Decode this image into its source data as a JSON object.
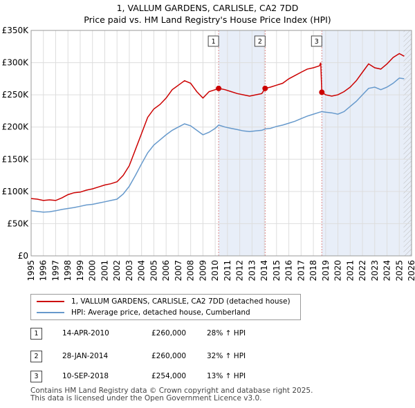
{
  "title_line1": "1, VALLUM GARDENS, CARLISLE, CA2 7DD",
  "title_line2": "Price paid vs. HM Land Registry's House Price Index (HPI)",
  "colors": {
    "property": "#cc0000",
    "hpi": "#6699cc",
    "shade": "#e8eef8",
    "marker_line": "#dd8888"
  },
  "chart_data": {
    "type": "line",
    "ylim": [
      0,
      350000
    ],
    "xlim": [
      1995,
      2026
    ],
    "y_ticks": [
      {
        "value": 0,
        "label": "£0"
      },
      {
        "value": 50000,
        "label": "£50K"
      },
      {
        "value": 100000,
        "label": "£100K"
      },
      {
        "value": 150000,
        "label": "£150K"
      },
      {
        "value": 200000,
        "label": "£200K"
      },
      {
        "value": 250000,
        "label": "£250K"
      },
      {
        "value": 300000,
        "label": "£300K"
      },
      {
        "value": 350000,
        "label": "£350K"
      }
    ],
    "x_ticks": [
      "1995",
      "1996",
      "1997",
      "1998",
      "1999",
      "2000",
      "2001",
      "2002",
      "2003",
      "2004",
      "2005",
      "2006",
      "2007",
      "2008",
      "2009",
      "2010",
      "2011",
      "2012",
      "2013",
      "2014",
      "2015",
      "2016",
      "2017",
      "2018",
      "2019",
      "2020",
      "2021",
      "2022",
      "2023",
      "2024",
      "2025",
      "2026"
    ],
    "shaded_spans": [
      [
        2010.28,
        2014.07
      ],
      [
        2018.69,
        2026
      ]
    ],
    "hatched_from": 2025.35,
    "markers": [
      {
        "label": "1",
        "x": 2010.28,
        "y": 260000
      },
      {
        "label": "2",
        "x": 2014.07,
        "y": 260000
      },
      {
        "label": "3",
        "x": 2018.69,
        "y": 254000
      }
    ],
    "series": [
      {
        "name": "1, VALLUM GARDENS, CARLISLE, CA2 7DD (detached house)",
        "color": "#cc0000",
        "points": [
          [
            1995.0,
            89000
          ],
          [
            1995.5,
            88000
          ],
          [
            1996.0,
            86000
          ],
          [
            1996.5,
            87000
          ],
          [
            1997.0,
            86000
          ],
          [
            1997.5,
            90000
          ],
          [
            1998.0,
            95000
          ],
          [
            1998.5,
            98000
          ],
          [
            1999.0,
            99000
          ],
          [
            1999.5,
            102000
          ],
          [
            2000.0,
            104000
          ],
          [
            2000.5,
            107000
          ],
          [
            2001.0,
            110000
          ],
          [
            2001.5,
            112000
          ],
          [
            2002.0,
            115000
          ],
          [
            2002.5,
            125000
          ],
          [
            2003.0,
            140000
          ],
          [
            2003.5,
            165000
          ],
          [
            2004.0,
            190000
          ],
          [
            2004.5,
            215000
          ],
          [
            2005.0,
            228000
          ],
          [
            2005.5,
            235000
          ],
          [
            2006.0,
            245000
          ],
          [
            2006.5,
            258000
          ],
          [
            2007.0,
            265000
          ],
          [
            2007.5,
            272000
          ],
          [
            2008.0,
            268000
          ],
          [
            2008.5,
            255000
          ],
          [
            2009.0,
            245000
          ],
          [
            2009.5,
            255000
          ],
          [
            2010.0,
            258000
          ],
          [
            2010.28,
            260000
          ],
          [
            2010.8,
            258000
          ],
          [
            2011.3,
            255000
          ],
          [
            2011.8,
            252000
          ],
          [
            2012.3,
            250000
          ],
          [
            2012.8,
            248000
          ],
          [
            2013.3,
            250000
          ],
          [
            2013.8,
            252000
          ],
          [
            2014.07,
            260000
          ],
          [
            2014.5,
            262000
          ],
          [
            2015.0,
            265000
          ],
          [
            2015.5,
            268000
          ],
          [
            2016.0,
            275000
          ],
          [
            2016.5,
            280000
          ],
          [
            2017.0,
            285000
          ],
          [
            2017.5,
            290000
          ],
          [
            2018.0,
            292000
          ],
          [
            2018.5,
            295000
          ],
          [
            2018.6,
            300000
          ],
          [
            2018.69,
            254000
          ],
          [
            2019.0,
            250000
          ],
          [
            2019.5,
            248000
          ],
          [
            2020.0,
            250000
          ],
          [
            2020.5,
            255000
          ],
          [
            2021.0,
            262000
          ],
          [
            2021.5,
            272000
          ],
          [
            2022.0,
            285000
          ],
          [
            2022.5,
            298000
          ],
          [
            2023.0,
            292000
          ],
          [
            2023.5,
            290000
          ],
          [
            2024.0,
            298000
          ],
          [
            2024.5,
            308000
          ],
          [
            2025.0,
            314000
          ],
          [
            2025.4,
            310000
          ]
        ]
      },
      {
        "name": "HPI: Average price, detached house, Cumberland",
        "color": "#6699cc",
        "points": [
          [
            1995.0,
            70000
          ],
          [
            1995.5,
            69000
          ],
          [
            1996.0,
            68000
          ],
          [
            1996.5,
            68500
          ],
          [
            1997.0,
            70000
          ],
          [
            1997.5,
            72000
          ],
          [
            1998.0,
            73500
          ],
          [
            1998.5,
            75000
          ],
          [
            1999.0,
            77000
          ],
          [
            1999.5,
            79000
          ],
          [
            2000.0,
            80000
          ],
          [
            2000.5,
            82000
          ],
          [
            2001.0,
            84000
          ],
          [
            2001.5,
            86000
          ],
          [
            2002.0,
            88000
          ],
          [
            2002.5,
            96000
          ],
          [
            2003.0,
            108000
          ],
          [
            2003.5,
            125000
          ],
          [
            2004.0,
            143000
          ],
          [
            2004.5,
            160000
          ],
          [
            2005.0,
            172000
          ],
          [
            2005.5,
            180000
          ],
          [
            2006.0,
            188000
          ],
          [
            2006.5,
            195000
          ],
          [
            2007.0,
            200000
          ],
          [
            2007.5,
            205000
          ],
          [
            2008.0,
            202000
          ],
          [
            2008.5,
            195000
          ],
          [
            2009.0,
            188000
          ],
          [
            2009.5,
            192000
          ],
          [
            2010.0,
            198000
          ],
          [
            2010.28,
            203000
          ],
          [
            2010.8,
            200000
          ],
          [
            2011.3,
            198000
          ],
          [
            2011.8,
            196000
          ],
          [
            2012.3,
            194000
          ],
          [
            2012.8,
            193000
          ],
          [
            2013.3,
            194000
          ],
          [
            2013.8,
            195000
          ],
          [
            2014.07,
            197000
          ],
          [
            2014.5,
            198000
          ],
          [
            2015.0,
            201000
          ],
          [
            2015.5,
            203000
          ],
          [
            2016.0,
            206000
          ],
          [
            2016.5,
            209000
          ],
          [
            2017.0,
            213000
          ],
          [
            2017.5,
            217000
          ],
          [
            2018.0,
            220000
          ],
          [
            2018.5,
            223000
          ],
          [
            2018.69,
            224000
          ],
          [
            2019.0,
            223000
          ],
          [
            2019.5,
            222000
          ],
          [
            2020.0,
            220000
          ],
          [
            2020.5,
            224000
          ],
          [
            2021.0,
            232000
          ],
          [
            2021.5,
            240000
          ],
          [
            2022.0,
            250000
          ],
          [
            2022.5,
            260000
          ],
          [
            2023.0,
            262000
          ],
          [
            2023.5,
            258000
          ],
          [
            2024.0,
            262000
          ],
          [
            2024.5,
            268000
          ],
          [
            2025.0,
            276000
          ],
          [
            2025.4,
            275000
          ]
        ]
      }
    ]
  },
  "legend": {
    "property_label": "1, VALLUM GARDENS, CARLISLE, CA2 7DD (detached house)",
    "hpi_label": "HPI: Average price, detached house, Cumberland"
  },
  "transactions": [
    {
      "num": "1",
      "date": "14-APR-2010",
      "price": "£260,000",
      "hpi": "28% ↑ HPI"
    },
    {
      "num": "2",
      "date": "28-JAN-2014",
      "price": "£260,000",
      "hpi": "32% ↑ HPI"
    },
    {
      "num": "3",
      "date": "10-SEP-2018",
      "price": "£254,000",
      "hpi": "13% ↑ HPI"
    }
  ],
  "footer_line1": "Contains HM Land Registry data © Crown copyright and database right 2025.",
  "footer_line2": "This data is licensed under the Open Government Licence v3.0."
}
